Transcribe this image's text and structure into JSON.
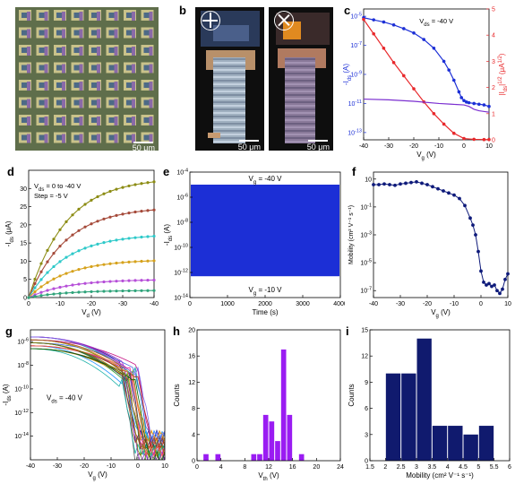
{
  "panels": {
    "a": {
      "label": "a",
      "scalebar": "50 μm"
    },
    "b": {
      "label": "b",
      "scalebar_left": "50 μm",
      "scalebar_right": "50 μm"
    },
    "c": {
      "label": "c"
    },
    "d": {
      "label": "d"
    },
    "e": {
      "label": "e"
    },
    "f": {
      "label": "f"
    },
    "g": {
      "label": "g"
    },
    "h": {
      "label": "h"
    },
    "i": {
      "label": "i"
    }
  },
  "colors": {
    "blue": "#1c2fd6",
    "red": "#e8282b",
    "purple": "#7b2fd0",
    "navy": "#0e1a7a",
    "hist_purple": "#9a1cf2",
    "hist_navy": "#101a6e",
    "d_curves": [
      "#2fa37a",
      "#b64fd8",
      "#d6a21c",
      "#2ec9c9",
      "#a54a3a",
      "#8c8c14"
    ]
  },
  "chart_data": [
    {
      "panel": "c",
      "type": "line",
      "annotation": "V_ds = -40 V",
      "xlabel": "V_g (V)",
      "ylabel_left": "-I_ds (A)",
      "ylabel_right": "|I_ds|^1/2 (μA^1/2)",
      "xlim": [
        -40,
        10
      ],
      "xticks": [
        -40,
        -30,
        -20,
        -10,
        0,
        10
      ],
      "ylim_left_log": [
        -13.5,
        -4.5
      ],
      "yticks_left": [
        "10^-5",
        "10^-7",
        "10^-9",
        "10^-11",
        "10^-13"
      ],
      "ylim_right": [
        0,
        5
      ],
      "yticks_right": [
        0,
        1,
        2,
        3,
        4,
        5
      ],
      "series": [
        {
          "axis": "left-log",
          "color": "blue",
          "x": [
            -40,
            -36,
            -32,
            -28,
            -24,
            -20,
            -16,
            -12,
            -8,
            -6,
            -4,
            -2,
            -1,
            0,
            1,
            2,
            4,
            6,
            8,
            10
          ],
          "logy": [
            -5.1,
            -5.25,
            -5.4,
            -5.6,
            -5.85,
            -6.15,
            -6.6,
            -7.2,
            -8.1,
            -8.7,
            -9.4,
            -10.2,
            -10.6,
            -10.8,
            -10.9,
            -10.95,
            -11.0,
            -11.05,
            -11.1,
            -11.2
          ]
        },
        {
          "axis": "right",
          "color": "red",
          "x": [
            -40,
            -36,
            -32,
            -28,
            -24,
            -20,
            -16,
            -12,
            -8,
            -4,
            0,
            4,
            8,
            10
          ],
          "y": [
            4.6,
            4.05,
            3.5,
            2.95,
            2.45,
            1.95,
            1.45,
            1.0,
            0.6,
            0.25,
            0.05,
            0.02,
            0.01,
            0.01
          ]
        },
        {
          "axis": "left-log",
          "color": "purple",
          "x": [
            -40,
            -30,
            -20,
            -10,
            -5,
            0,
            2,
            4,
            6,
            10
          ],
          "logy": [
            -10.7,
            -10.75,
            -10.85,
            -11.0,
            -11.05,
            -11.1,
            -11.2,
            -11.4,
            -11.5,
            -11.6
          ]
        }
      ]
    },
    {
      "panel": "d",
      "type": "line",
      "annotation_1": "V_ds = 0 to -40 V",
      "annotation_2": "Step = -5 V",
      "xlabel": "V_d (V)",
      "ylabel": "-I_ds (μA)",
      "xlim": [
        0,
        -40
      ],
      "xticks": [
        0,
        -10,
        -20,
        -30,
        -40
      ],
      "ylim": [
        0,
        35
      ],
      "yticks": [
        0,
        5,
        10,
        15,
        20,
        25,
        30
      ],
      "saturation": [
        33,
        25,
        17.5,
        10.5,
        5,
        2
      ]
    },
    {
      "panel": "e",
      "type": "area",
      "annotation_top": "V_g = -40 V",
      "annotation_bottom": "V_g = -10 V",
      "xlabel": "Time (s)",
      "ylabel": "-I_ds (A)",
      "xlim": [
        0,
        4000
      ],
      "xticks": [
        0,
        1000,
        2000,
        3000,
        4000
      ],
      "yticks": [
        "10^-4",
        "10^-6",
        "10^-8",
        "10^-10",
        "10^-12",
        "10^-14"
      ],
      "ylim_log": [
        -14,
        -4
      ],
      "band_log": [
        -12.3,
        -5.0
      ]
    },
    {
      "panel": "f",
      "type": "scatter",
      "xlabel": "V_g (V)",
      "ylabel": "Mobility (cm² V⁻¹ s⁻¹)",
      "xlim": [
        -40,
        10
      ],
      "xticks": [
        -40,
        -30,
        -20,
        -10,
        0,
        10
      ],
      "yticks": [
        "10",
        "10^-1",
        "10^-3",
        "10^-5",
        "10^-7"
      ],
      "ylim_log": [
        -7.5,
        1.5
      ],
      "x": [
        -40,
        -38,
        -36,
        -34,
        -32,
        -30,
        -28,
        -26,
        -24,
        -22,
        -20,
        -18,
        -16,
        -14,
        -12,
        -10,
        -8,
        -6,
        -4,
        -3,
        -2,
        -1,
        0,
        1,
        2,
        3,
        4,
        5,
        6,
        7,
        8,
        9,
        10
      ],
      "logy": [
        0.6,
        0.6,
        0.65,
        0.6,
        0.55,
        0.65,
        0.7,
        0.75,
        0.8,
        0.7,
        0.6,
        0.45,
        0.3,
        0.15,
        0.0,
        -0.15,
        -0.4,
        -0.9,
        -1.8,
        -2.3,
        -3.0,
        -4.2,
        -5.6,
        -6.4,
        -6.6,
        -6.5,
        -6.7,
        -6.6,
        -7.0,
        -7.2,
        -6.9,
        -6.2,
        -5.8
      ]
    },
    {
      "panel": "g",
      "type": "line",
      "annotation": "V_ds = -40 V",
      "xlabel": "V_g (V)",
      "ylabel": "-I_ds (A)",
      "xlim": [
        -40,
        10
      ],
      "xticks": [
        -40,
        -30,
        -20,
        -10,
        0,
        10
      ],
      "yticks": [
        "10^-6",
        "10^-8",
        "10^-10",
        "10^-12",
        "10^-14"
      ],
      "ylim_log": [
        -16,
        -5
      ]
    },
    {
      "panel": "h",
      "type": "bar",
      "xlabel": "V_th (V)",
      "ylabel": "Counts",
      "xlim": [
        0,
        24
      ],
      "xticks": [
        0,
        4,
        8,
        12,
        16,
        20,
        24
      ],
      "ylim": [
        0,
        20
      ],
      "yticks": [
        0,
        4,
        8,
        12,
        16,
        20
      ],
      "x": [
        1.5,
        3.5,
        9.5,
        10.5,
        11.5,
        12.5,
        13.5,
        14.5,
        15.5,
        17.5
      ],
      "values": [
        1,
        1,
        1,
        1,
        7,
        6,
        3,
        17,
        7,
        1
      ]
    },
    {
      "panel": "i",
      "type": "bar",
      "xlabel": "Mobility (cm² V⁻¹ s⁻¹)",
      "ylabel": "Counts",
      "xlim": [
        1.5,
        6
      ],
      "xticks": [
        "1.5",
        "2",
        "2.5",
        "3",
        "3.5",
        "4",
        "4.5",
        "5",
        "5.5",
        "6"
      ],
      "ylim": [
        0,
        15
      ],
      "yticks": [
        0,
        3,
        6,
        9,
        12,
        15
      ],
      "x": [
        2.25,
        2.75,
        3.25,
        3.75,
        4.25,
        4.75,
        5.25
      ],
      "values": [
        10,
        10,
        14,
        4,
        4,
        3,
        4
      ]
    }
  ]
}
